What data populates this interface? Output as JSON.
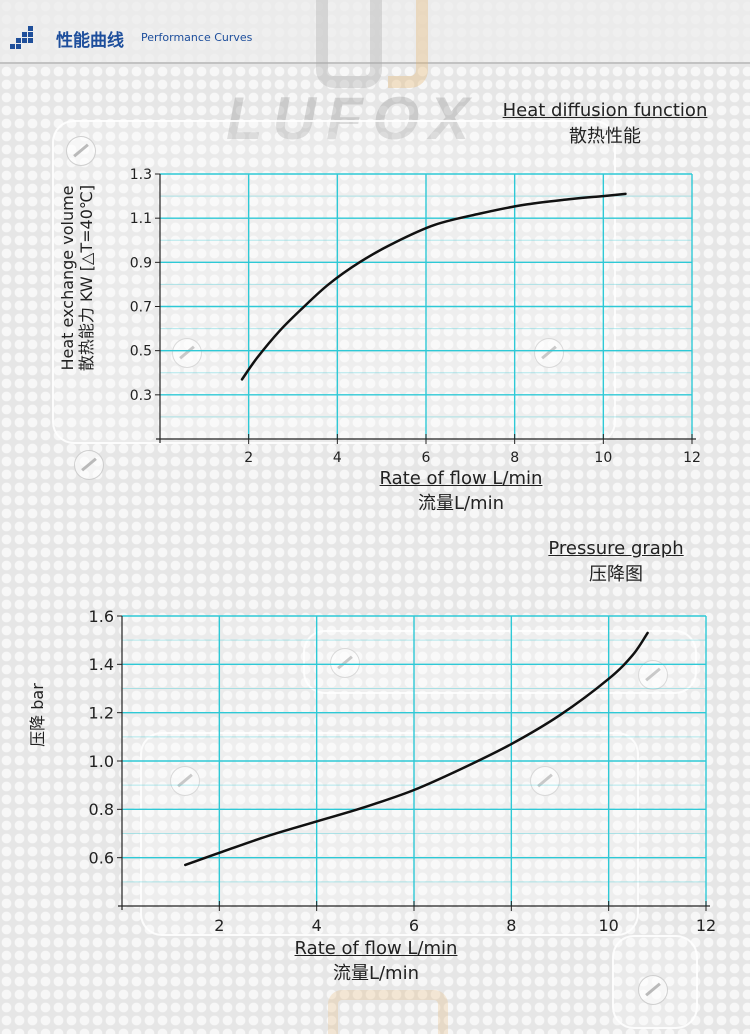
{
  "header": {
    "title_cn": "性能曲线",
    "title_en": "Performance Curves",
    "accent_color": "#1d4e9c"
  },
  "brand": "LUFOX",
  "chart_data": [
    {
      "type": "line",
      "title": "Heat diffusion function",
      "subtitle": "散热性能",
      "xlabel": "Rate of flow L/min",
      "xlabel_cn": "流量L/min",
      "ylabel": "Heat exchange volume",
      "ylabel_cn": "散热能力 KW [△T=40℃]",
      "xlim": [
        0,
        12
      ],
      "ylim": [
        0.1,
        1.3
      ],
      "xticks": [
        2,
        4,
        6,
        8,
        10,
        12
      ],
      "yticks": [
        0.3,
        0.5,
        0.7,
        0.9,
        1.1,
        1.3
      ],
      "xtick_labels": [
        "2",
        "4",
        "6",
        "8",
        "10",
        "12"
      ],
      "ytick_labels": [
        "0.3",
        "0.5",
        "0.7",
        "0.9",
        "1.1",
        "1.3"
      ],
      "grid": true,
      "grid_color": "#2ec9d6",
      "series": [
        {
          "x": [
            1.85,
            2.2,
            2.7,
            3.2,
            3.8,
            4.5,
            5.3,
            6.2,
            7.2,
            8.2,
            9.2,
            10.0,
            10.5
          ],
          "y": [
            0.37,
            0.47,
            0.59,
            0.69,
            0.8,
            0.9,
            0.99,
            1.07,
            1.12,
            1.16,
            1.185,
            1.2,
            1.21
          ]
        }
      ]
    },
    {
      "type": "line",
      "title": "Pressure graph",
      "subtitle": "压降图",
      "xlabel": "Rate of flow L/min",
      "xlabel_cn": "流量L/min",
      "ylabel": "压降 bar",
      "xlim": [
        0,
        12
      ],
      "ylim": [
        0.4,
        1.6
      ],
      "xticks": [
        2,
        4,
        6,
        8,
        10,
        12
      ],
      "yticks": [
        0.6,
        0.8,
        1.0,
        1.2,
        1.4,
        1.6
      ],
      "xtick_labels": [
        "2",
        "4",
        "6",
        "8",
        "10",
        "12"
      ],
      "ytick_labels": [
        "0.6",
        "0.8",
        "1.0",
        "1.2",
        "1.4",
        "1.6"
      ],
      "grid": true,
      "grid_color": "#2ec9d6",
      "series": [
        {
          "x": [
            1.3,
            2.0,
            3.0,
            4.0,
            5.0,
            6.0,
            7.0,
            8.0,
            9.0,
            10.0,
            10.5,
            10.8
          ],
          "y": [
            0.57,
            0.62,
            0.69,
            0.75,
            0.81,
            0.88,
            0.97,
            1.07,
            1.19,
            1.34,
            1.44,
            1.53
          ]
        }
      ]
    }
  ]
}
